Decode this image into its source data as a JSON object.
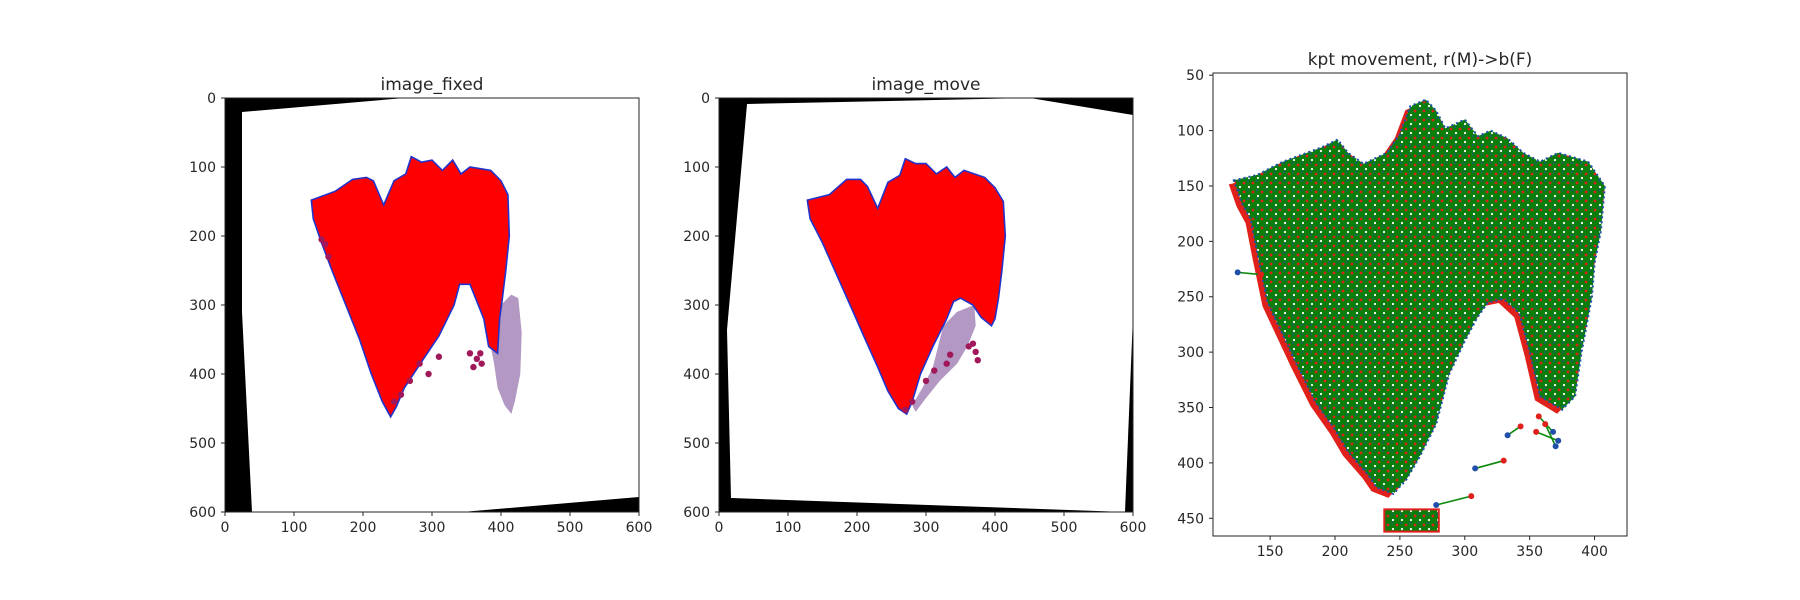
{
  "colors": {
    "tissue_fill": "#ff0000",
    "tissue_edge": "#2233cc",
    "stain_fill": "#a486b8",
    "stain_dot": "#a0185a",
    "frame_fill": "#000000",
    "fixed_kpt": "#1f4fa8",
    "moving_kpt": "#e0201a",
    "movement_line": "#0a8a0a",
    "overlay_fill": "#0b7d0b",
    "axis": "#262626"
  },
  "chart_data": [
    {
      "type": "scatter",
      "title": "image_fixed",
      "xlabel": "",
      "ylabel": "",
      "xlim": [
        0,
        600
      ],
      "ylim": [
        600,
        0
      ],
      "y_inverted": true,
      "xticks": [
        "0",
        "100",
        "200",
        "300",
        "400",
        "500",
        "600"
      ],
      "yticks": [
        "0",
        "100",
        "200",
        "300",
        "400",
        "500",
        "600"
      ],
      "grid": false,
      "series": [
        {
          "values": {
            "tissue_outline": [
              [
                125,
                148
              ],
              [
                160,
                135
              ],
              [
                185,
                118
              ],
              [
                205,
                115
              ],
              [
                215,
                120
              ],
              [
                230,
                155
              ],
              [
                245,
                120
              ],
              [
                262,
                110
              ],
              [
                270,
                85
              ],
              [
                285,
                93
              ],
              [
                300,
                90
              ],
              [
                315,
                105
              ],
              [
                330,
                90
              ],
              [
                342,
                110
              ],
              [
                355,
                100
              ],
              [
                385,
                105
              ],
              [
                400,
                120
              ],
              [
                410,
                140
              ],
              [
                412,
                200
              ],
              [
                407,
                250
              ],
              [
                402,
                290
              ],
              [
                398,
                320
              ],
              [
                395,
                370
              ],
              [
                382,
                360
              ],
              [
                375,
                320
              ],
              [
                355,
                270
              ],
              [
                340,
                270
              ],
              [
                332,
                300
              ],
              [
                310,
                345
              ],
              [
                283,
                385
              ],
              [
                260,
                420
              ],
              [
                248,
                448
              ],
              [
                240,
                462
              ],
              [
                228,
                440
              ],
              [
                212,
                400
              ],
              [
                195,
                350
              ],
              [
                175,
                300
              ],
              [
                155,
                250
              ],
              [
                140,
                210
              ],
              [
                128,
                175
              ]
            ],
            "stain_region": [
              [
                380,
                320
              ],
              [
                400,
                300
              ],
              [
                415,
                285
              ],
              [
                425,
                290
              ],
              [
                430,
                340
              ],
              [
                428,
                400
              ],
              [
                420,
                440
              ],
              [
                415,
                458
              ],
              [
                405,
                445
              ],
              [
                395,
                420
              ],
              [
                390,
                385
              ],
              [
                385,
                360
              ]
            ],
            "outlier_points": [
              [
                310,
                375
              ],
              [
                295,
                400
              ],
              [
                282,
                385
              ],
              [
                255,
                430
              ],
              [
                245,
                440
              ],
              [
                268,
                410
              ],
              [
                140,
                205
              ],
              [
                150,
                230
              ],
              [
                145,
                212
              ],
              [
                355,
                370
              ],
              [
                365,
                378
              ],
              [
                360,
                390
              ],
              [
                372,
                385
              ],
              [
                370,
                370
              ]
            ]
          }
        }
      ]
    },
    {
      "type": "scatter",
      "title": "image_move",
      "xlabel": "",
      "ylabel": "",
      "xlim": [
        0,
        600
      ],
      "ylim": [
        600,
        0
      ],
      "y_inverted": true,
      "xticks": [
        "0",
        "100",
        "200",
        "300",
        "400",
        "500",
        "600"
      ],
      "yticks": [
        "0",
        "100",
        "200",
        "300",
        "400",
        "500",
        "600"
      ],
      "grid": false,
      "series": [
        {
          "values": {
            "tissue_outline": [
              [
                128,
                148
              ],
              [
                160,
                140
              ],
              [
                185,
                118
              ],
              [
                205,
                118
              ],
              [
                215,
                128
              ],
              [
                230,
                160
              ],
              [
                245,
                122
              ],
              [
                262,
                112
              ],
              [
                270,
                88
              ],
              [
                285,
                95
              ],
              [
                300,
                95
              ],
              [
                315,
                110
              ],
              [
                330,
                100
              ],
              [
                342,
                115
              ],
              [
                355,
                105
              ],
              [
                385,
                115
              ],
              [
                400,
                130
              ],
              [
                412,
                150
              ],
              [
                415,
                200
              ],
              [
                410,
                250
              ],
              [
                405,
                290
              ],
              [
                400,
                320
              ],
              [
                395,
                330
              ],
              [
                380,
                318
              ],
              [
                368,
                300
              ],
              [
                350,
                290
              ],
              [
                340,
                295
              ],
              [
                330,
                320
              ],
              [
                310,
                360
              ],
              [
                292,
                400
              ],
              [
                280,
                440
              ],
              [
                272,
                458
              ],
              [
                260,
                450
              ],
              [
                245,
                425
              ],
              [
                230,
                390
              ],
              [
                212,
                350
              ],
              [
                190,
                300
              ],
              [
                170,
                255
              ],
              [
                150,
                210
              ],
              [
                132,
                175
              ]
            ],
            "stain_region": [
              [
                325,
                330
              ],
              [
                345,
                310
              ],
              [
                370,
                300
              ],
              [
                372,
                330
              ],
              [
                360,
                360
              ],
              [
                345,
                385
              ],
              [
                320,
                410
              ],
              [
                300,
                435
              ],
              [
                285,
                455
              ],
              [
                280,
                445
              ],
              [
                295,
                420
              ],
              [
                310,
                390
              ]
            ],
            "outlier_points": [
              [
                330,
                385
              ],
              [
                312,
                395
              ],
              [
                300,
                410
              ],
              [
                280,
                440
              ],
              [
                270,
                452
              ],
              [
                362,
                360
              ],
              [
                372,
                368
              ],
              [
                375,
                380
              ],
              [
                368,
                356
              ],
              [
                335,
                372
              ]
            ]
          }
        }
      ]
    },
    {
      "type": "scatter",
      "title": "kpt movement, r(M)->b(F)",
      "xlabel": "",
      "ylabel": "",
      "xlim": [
        106,
        425
      ],
      "ylim": [
        466,
        48
      ],
      "y_inverted": true,
      "xticks": [
        "150",
        "200",
        "250",
        "300",
        "350",
        "400"
      ],
      "yticks": [
        "50",
        "100",
        "150",
        "200",
        "250",
        "300",
        "350",
        "400",
        "450"
      ],
      "grid": false,
      "series": [
        {
          "values": {
            "tissue_outline": [
              [
                122,
                145
              ],
              [
                140,
                140
              ],
              [
                160,
                128
              ],
              [
                190,
                115
              ],
              [
                202,
                108
              ],
              [
                210,
                120
              ],
              [
                222,
                130
              ],
              [
                240,
                120
              ],
              [
                250,
                103
              ],
              [
                258,
                78
              ],
              [
                270,
                72
              ],
              [
                278,
                82
              ],
              [
                285,
                98
              ],
              [
                300,
                90
              ],
              [
                310,
                105
              ],
              [
                320,
                100
              ],
              [
                333,
                107
              ],
              [
                345,
                120
              ],
              [
                358,
                128
              ],
              [
                372,
                120
              ],
              [
                395,
                128
              ],
              [
                408,
                150
              ],
              [
                405,
                190
              ],
              [
                400,
                220
              ],
              [
                398,
                250
              ],
              [
                390,
                300
              ],
              [
                385,
                340
              ],
              [
                375,
                352
              ],
              [
                358,
                340
              ],
              [
                350,
                300
              ],
              [
                342,
                265
              ],
              [
                330,
                252
              ],
              [
                318,
                255
              ],
              [
                310,
                268
              ],
              [
                300,
                290
              ],
              [
                288,
                320
              ],
              [
                278,
                365
              ],
              [
                265,
                395
              ],
              [
                255,
                415
              ],
              [
                245,
                428
              ],
              [
                232,
                422
              ],
              [
                225,
                410
              ],
              [
                210,
                390
              ],
              [
                200,
                370
              ],
              [
                185,
                345
              ],
              [
                170,
                310
              ],
              [
                160,
                285
              ],
              [
                148,
                255
              ],
              [
                140,
                210
              ],
              [
                135,
                180
              ],
              [
                128,
                165
              ]
            ],
            "cluster": [
              [
                238,
                442
              ],
              [
                280,
                442
              ],
              [
                280,
                462
              ],
              [
                238,
                462
              ]
            ],
            "movement_pairs": [
              {
                "moving": [
                  143,
                  230
                ],
                "fixed": [
                  125,
                  228
                ]
              },
              {
                "moving": [
                  343,
                  367
                ],
                "fixed": [
                  333,
                  375
                ]
              },
              {
                "moving": [
                  330,
                  398
                ],
                "fixed": [
                  308,
                  405
                ]
              },
              {
                "moving": [
                  305,
                  430
                ],
                "fixed": [
                  278,
                  438
                ]
              },
              {
                "moving": [
                  357,
                  358
                ],
                "fixed": [
                  368,
                  372
                ]
              },
              {
                "moving": [
                  355,
                  372
                ],
                "fixed": [
                  372,
                  380
                ]
              },
              {
                "moving": [
                  362,
                  365
                ],
                "fixed": [
                  370,
                  385
                ]
              }
            ]
          }
        }
      ]
    }
  ]
}
